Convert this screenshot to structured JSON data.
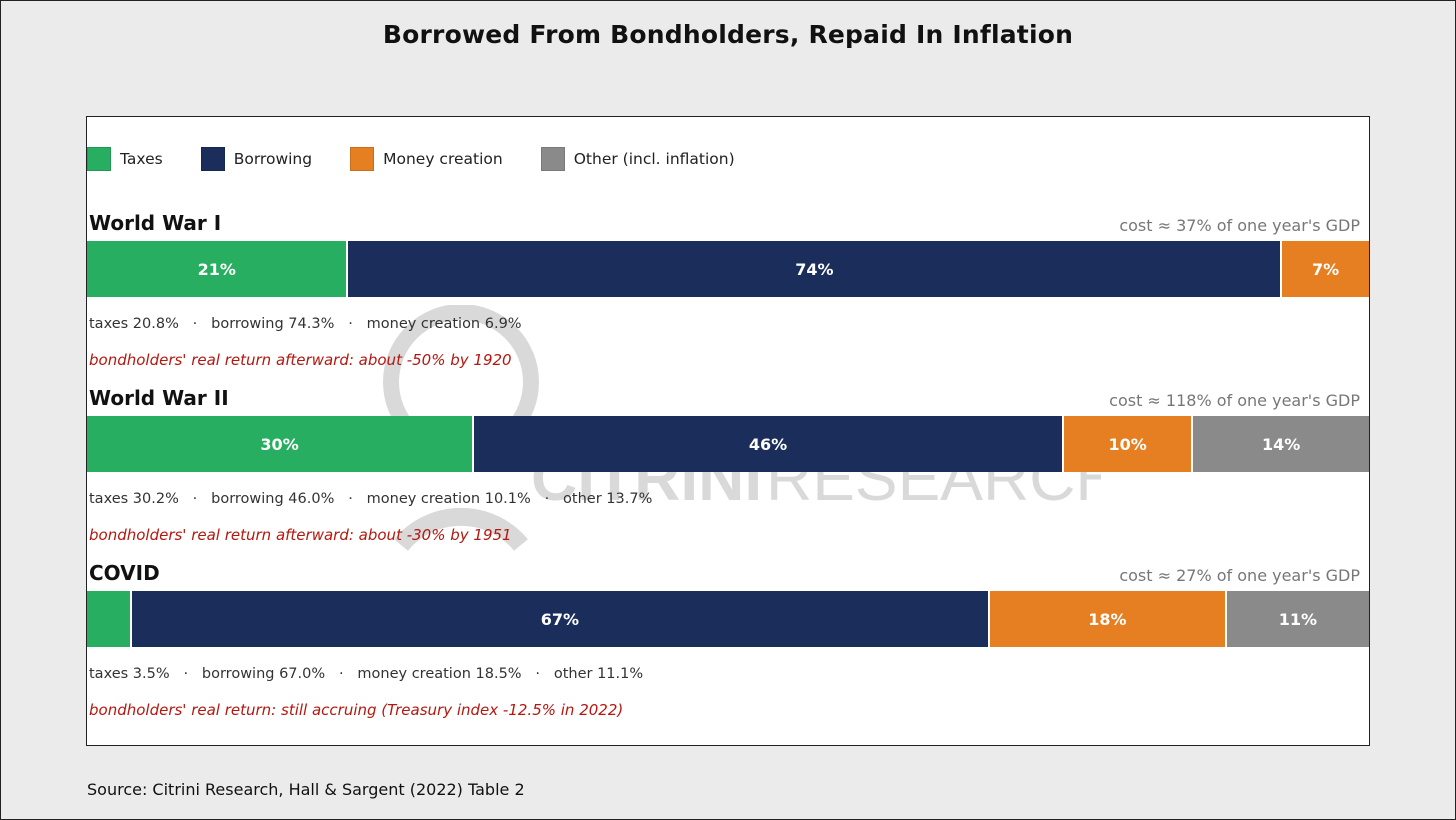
{
  "title": "Borrowed From Bondholders, Repaid In Inflation",
  "legend": [
    {
      "label": "Taxes",
      "color": "#27ae60"
    },
    {
      "label": "Borrowing",
      "color": "#1b2d5b"
    },
    {
      "label": "Money creation",
      "color": "#e67e22"
    },
    {
      "label": "Other (incl. inflation)",
      "color": "#8a8a8a"
    }
  ],
  "watermark": {
    "brand": "CITRINI",
    "suffix": "RESEARCH",
    "color": "#d9d9d9"
  },
  "chart_data": {
    "type": "bar",
    "stacked": true,
    "orientation": "horizontal",
    "title": "Borrowed From Bondholders, Repaid In Inflation",
    "series_names": [
      "Taxes",
      "Borrowing",
      "Money creation",
      "Other (incl. inflation)"
    ],
    "groups": [
      {
        "name": "World War I",
        "cost": "cost ≈ 37% of one year's GDP",
        "values": [
          20.8,
          74.3,
          6.9,
          0
        ],
        "labels": [
          "21%",
          "74%",
          "7%",
          ""
        ],
        "breakdown": "taxes 20.8%   ·   borrowing 74.3%   ·   money creation 6.9%",
        "note": "bondholders' real return afterward: about -50% by 1920"
      },
      {
        "name": "World War II",
        "cost": "cost ≈ 118% of one year's GDP",
        "values": [
          30.2,
          46.0,
          10.1,
          13.7
        ],
        "labels": [
          "30%",
          "46%",
          "10%",
          "14%"
        ],
        "breakdown": "taxes 30.2%   ·   borrowing 46.0%   ·   money creation 10.1%   ·   other 13.7%",
        "note": "bondholders' real return afterward: about -30% by 1951"
      },
      {
        "name": "COVID",
        "cost": "cost ≈ 27% of one year's GDP",
        "values": [
          3.5,
          67.0,
          18.5,
          11.1
        ],
        "labels": [
          "",
          "67%",
          "18%",
          "11%"
        ],
        "breakdown": "taxes 3.5%   ·   borrowing 67.0%   ·   money creation 18.5%   ·   other 11.1%",
        "note": "bondholders' real return: still accruing (Treasury index -12.5% in 2022)"
      }
    ]
  },
  "source": "Source: Citrini Research, Hall & Sargent (2022) Table 2"
}
